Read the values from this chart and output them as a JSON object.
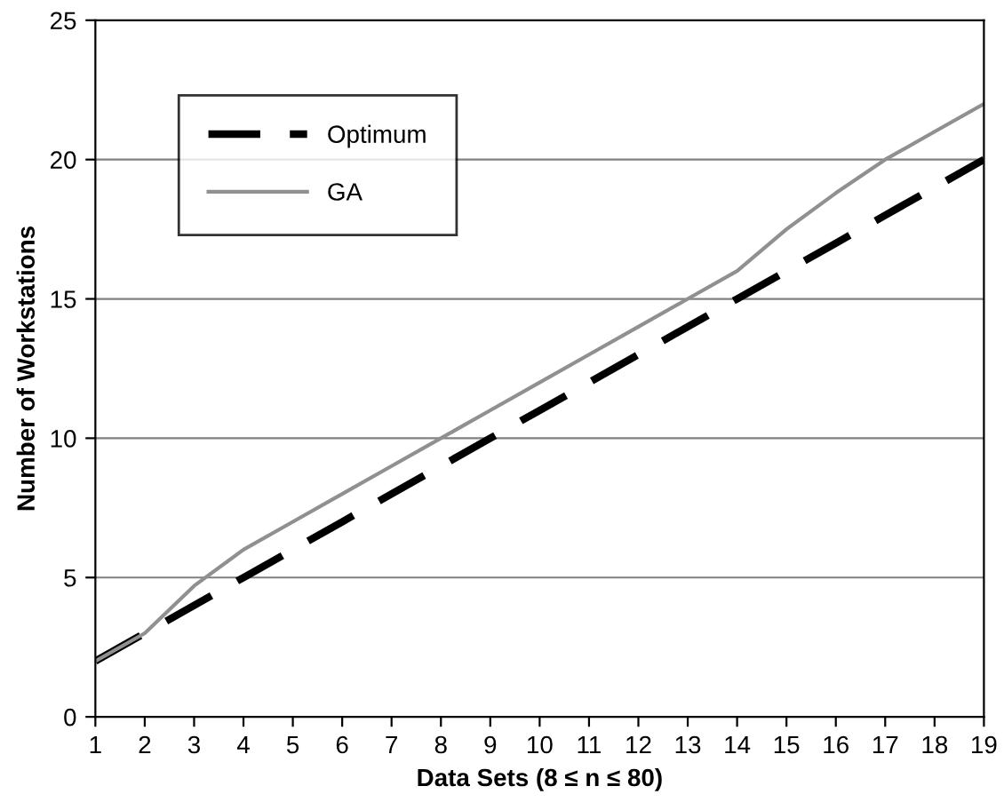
{
  "chart_data": {
    "type": "line",
    "xlabel": "Data Sets (8 ≤ n ≤ 80)",
    "ylabel": "Number of Workstations",
    "categories": [
      "1",
      "2",
      "3",
      "4",
      "5",
      "6",
      "7",
      "8",
      "9",
      "10",
      "11",
      "12",
      "13",
      "14",
      "15",
      "16",
      "17",
      "18",
      "19"
    ],
    "series": [
      {
        "name": "Optimum",
        "color": "#000000",
        "line_style": "dashed",
        "values": [
          2,
          3,
          4,
          5,
          6,
          7,
          8,
          9,
          10,
          11,
          12,
          13,
          14,
          15,
          16,
          17,
          18,
          19,
          20
        ]
      },
      {
        "name": "GA",
        "color": "#909090",
        "line_style": "solid",
        "values": [
          2,
          3,
          4.7,
          6,
          7,
          8,
          9,
          10,
          11,
          12,
          13,
          14,
          15,
          16,
          17.5,
          18.8,
          20,
          21,
          22
        ]
      }
    ],
    "ylim": [
      0,
      25
    ],
    "yticks": [
      0,
      5,
      10,
      15,
      20,
      25
    ],
    "grid": "y",
    "legend": "top left",
    "marker": "none"
  }
}
